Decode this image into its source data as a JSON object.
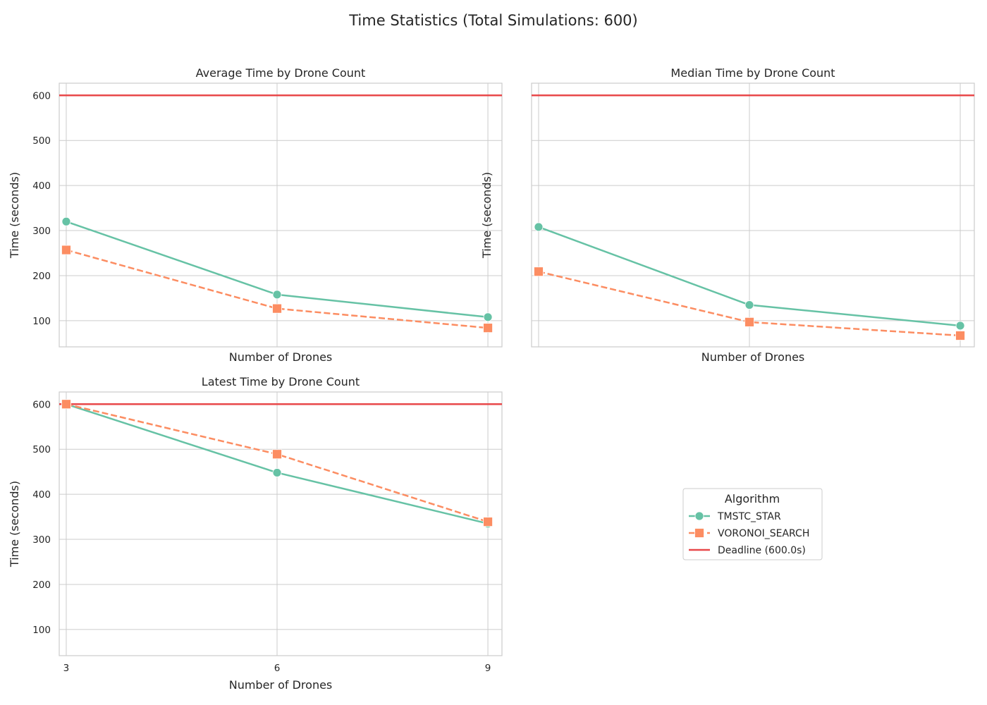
{
  "figure": {
    "title": "Time Statistics (Total Simulations: 600)"
  },
  "colors": {
    "TMSTC_STAR": "#66c2a5",
    "VORONOI_SEARCH": "#fc8d62",
    "deadline": "#e8484a",
    "grid": "#cccccc",
    "spine": "#cccccc",
    "background": "#ffffff"
  },
  "chart_data": [
    {
      "type": "line",
      "title": "Average Time by Drone Count",
      "xlabel": "Number of Drones",
      "ylabel": "Time (seconds)",
      "x": [
        3,
        6,
        9
      ],
      "xlim": [
        2.9,
        9.2
      ],
      "ylim": [
        42,
        627
      ],
      "yticks": [
        100,
        200,
        300,
        400,
        500,
        600
      ],
      "show_x_tick_labels": false,
      "show_y_tick_labels": true,
      "grid": true,
      "series": [
        {
          "name": "TMSTC_STAR",
          "values": [
            320,
            158,
            108
          ],
          "marker": "circle",
          "line_style": "solid"
        },
        {
          "name": "VORONOI_SEARCH",
          "values": [
            257,
            127,
            84
          ],
          "marker": "square",
          "line_style": "dashed"
        }
      ],
      "deadline": 600
    },
    {
      "type": "line",
      "title": "Median Time by Drone Count",
      "xlabel": "Number of Drones",
      "ylabel": "Time (seconds)",
      "x": [
        3,
        6,
        9
      ],
      "xlim": [
        2.9,
        9.2
      ],
      "ylim": [
        42,
        627
      ],
      "yticks": [
        100,
        200,
        300,
        400,
        500,
        600
      ],
      "show_x_tick_labels": false,
      "show_y_tick_labels": false,
      "grid": true,
      "series": [
        {
          "name": "TMSTC_STAR",
          "values": [
            308,
            135,
            89
          ],
          "marker": "circle",
          "line_style": "solid"
        },
        {
          "name": "VORONOI_SEARCH",
          "values": [
            209,
            97,
            67
          ],
          "marker": "square",
          "line_style": "dashed"
        }
      ],
      "deadline": 600
    },
    {
      "type": "line",
      "title": "Latest Time by Drone Count",
      "xlabel": "Number of Drones",
      "ylabel": "Time (seconds)",
      "x": [
        3,
        6,
        9
      ],
      "xticks": [
        3,
        6,
        9
      ],
      "xlim": [
        2.9,
        9.2
      ],
      "ylim": [
        42,
        627
      ],
      "yticks": [
        100,
        200,
        300,
        400,
        500,
        600
      ],
      "show_x_tick_labels": true,
      "show_y_tick_labels": true,
      "grid": true,
      "series": [
        {
          "name": "TMSTC_STAR",
          "values": [
            600,
            448,
            335
          ],
          "marker": "circle",
          "line_style": "solid"
        },
        {
          "name": "VORONOI_SEARCH",
          "values": [
            600,
            489,
            339
          ],
          "marker": "square",
          "line_style": "dashed"
        }
      ],
      "deadline": 600
    }
  ],
  "legend": {
    "title": "Algorithm",
    "location": "center of empty bottom-right panel",
    "entries": [
      {
        "label": "TMSTC_STAR",
        "color_key": "TMSTC_STAR",
        "marker": "circle",
        "line_style": "solid"
      },
      {
        "label": "VORONOI_SEARCH",
        "color_key": "VORONOI_SEARCH",
        "marker": "square",
        "line_style": "dashed"
      },
      {
        "label": "Deadline (600.0s)",
        "color_key": "deadline",
        "marker": "none",
        "line_style": "solid"
      }
    ]
  }
}
